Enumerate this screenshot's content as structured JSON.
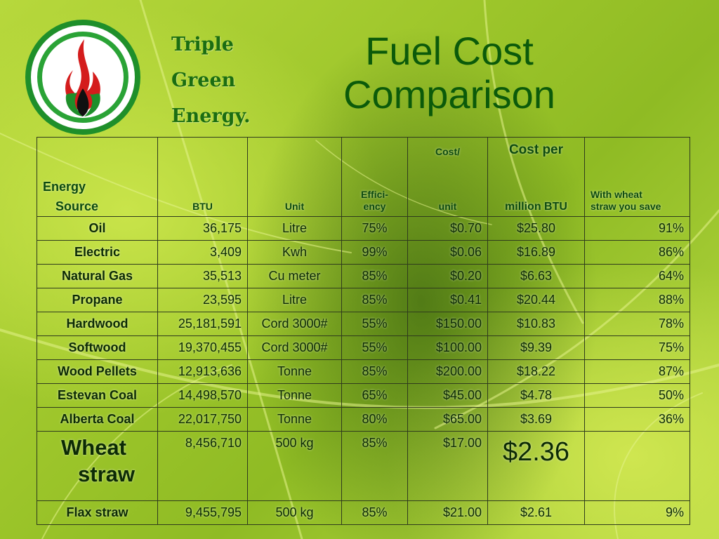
{
  "brand": {
    "line1": "Triple",
    "line2": "Green",
    "line3": "Energy."
  },
  "title": {
    "line1": "Fuel Cost",
    "line2": "Comparison"
  },
  "table": {
    "headers": {
      "source_line1": "Energy",
      "source_line2": "Source",
      "btu": "BTU",
      "unit": "Unit",
      "efficiency_line1": "Effici-",
      "efficiency_line2": "ency",
      "cost_top": "Cost/",
      "cost_bottom": "unit",
      "cpm_top": "Cost per",
      "cpm_bottom": "million BTU",
      "save_line1": "With wheat",
      "save_line2": "straw you save"
    },
    "rows": [
      {
        "source": "Oil",
        "btu": "36,175",
        "unit": "Litre",
        "efficiency": "75%",
        "cost": "$0.70",
        "cpm": "$25.80",
        "save": "91%"
      },
      {
        "source": "Electric",
        "btu": "3,409",
        "unit": "Kwh",
        "efficiency": "99%",
        "cost": "$0.06",
        "cpm": "$16.89",
        "save": "86%"
      },
      {
        "source": "Natural Gas",
        "btu": "35,513",
        "unit": "Cu meter",
        "efficiency": "85%",
        "cost": "$0.20",
        "cpm": "$6.63",
        "save": "64%"
      },
      {
        "source": "Propane",
        "btu": "23,595",
        "unit": "Litre",
        "efficiency": "85%",
        "cost": "$0.41",
        "cpm": "$20.44",
        "save": "88%"
      },
      {
        "source": "Hardwood",
        "btu": "25,181,591",
        "unit": "Cord 3000#",
        "efficiency": "55%",
        "cost": "$150.00",
        "cpm": "$10.83",
        "save": "78%"
      },
      {
        "source": "Softwood",
        "btu": "19,370,455",
        "unit": "Cord 3000#",
        "efficiency": "55%",
        "cost": "$100.00",
        "cpm": "$9.39",
        "save": "75%"
      },
      {
        "source": "Wood Pellets",
        "btu": "12,913,636",
        "unit": "Tonne",
        "efficiency": "85%",
        "cost": "$200.00",
        "cpm": "$18.22",
        "save": "87%"
      },
      {
        "source": "Estevan Coal",
        "btu": "14,498,570",
        "unit": "Tonne",
        "efficiency": "65%",
        "cost": "$45.00",
        "cpm": "$4.78",
        "save": "50%"
      },
      {
        "source": "Alberta Coal",
        "btu": "22,017,750",
        "unit": "Tonne",
        "efficiency": "80%",
        "cost": "$65.00",
        "cpm": "$3.69",
        "save": "36%"
      }
    ],
    "wheat": {
      "source_line1": "Wheat",
      "source_line2": "straw",
      "btu": "8,456,710",
      "unit": "500 kg",
      "efficiency": "85%",
      "cost": "$17.00",
      "cpm": "$2.36",
      "save": ""
    },
    "flax": {
      "source": "Flax straw",
      "btu": "9,455,795",
      "unit": "500 kg",
      "efficiency": "85%",
      "cost": "$21.00",
      "cpm": "$2.61",
      "save": "9%"
    }
  },
  "colors": {
    "leaf_light": "#c9e44a",
    "leaf_dark": "#8fbb24",
    "title_green": "#0b5a0a",
    "brand_green": "#1b6d12",
    "flame_red": "#d41c1c",
    "flame_green": "#1e8f2a"
  }
}
